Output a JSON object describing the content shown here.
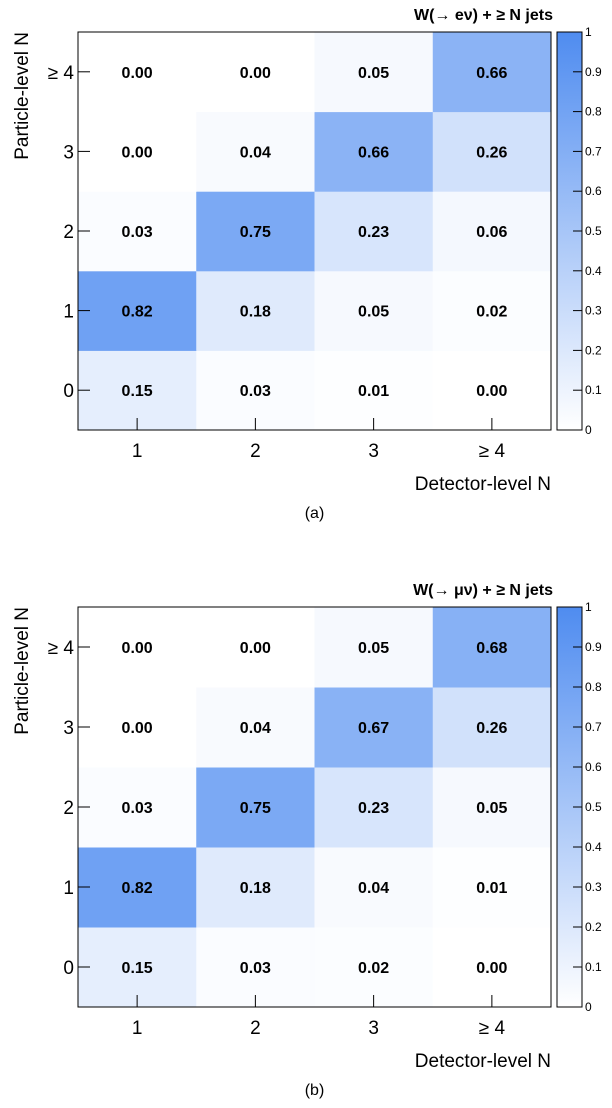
{
  "chart_data": [
    {
      "type": "heatmap",
      "title": "W(→ eν) + ≥ N jets",
      "xlabel": "Detector-level N",
      "ylabel": "Particle-level N",
      "caption": "(a)",
      "x_categories": [
        "1",
        "2",
        "3",
        "≥ 4"
      ],
      "y_categories": [
        "0",
        "1",
        "2",
        "3",
        "≥ 4"
      ],
      "values": [
        [
          0.15,
          0.03,
          0.01,
          0.0
        ],
        [
          0.82,
          0.18,
          0.05,
          0.02
        ],
        [
          0.03,
          0.75,
          0.23,
          0.06
        ],
        [
          0.0,
          0.04,
          0.66,
          0.26
        ],
        [
          0.0,
          0.0,
          0.05,
          0.66
        ]
      ],
      "zlim": [
        0,
        1
      ],
      "colorbar_ticks": [
        "0",
        "0.1",
        "0.2",
        "0.3",
        "0.4",
        "0.5",
        "0.6",
        "0.7",
        "0.8",
        "0.9",
        "1"
      ],
      "colormap": {
        "low": "#ffffff",
        "high": "#4f8cf0"
      }
    },
    {
      "type": "heatmap",
      "title": "W(→ μν) + ≥ N jets",
      "xlabel": "Detector-level N",
      "ylabel": "Particle-level N",
      "caption": "(b)",
      "x_categories": [
        "1",
        "2",
        "3",
        "≥ 4"
      ],
      "y_categories": [
        "0",
        "1",
        "2",
        "3",
        "≥ 4"
      ],
      "values": [
        [
          0.15,
          0.03,
          0.02,
          0.0
        ],
        [
          0.82,
          0.18,
          0.04,
          0.01
        ],
        [
          0.03,
          0.75,
          0.23,
          0.05
        ],
        [
          0.0,
          0.04,
          0.67,
          0.26
        ],
        [
          0.0,
          0.0,
          0.05,
          0.68
        ]
      ],
      "zlim": [
        0,
        1
      ],
      "colorbar_ticks": [
        "0",
        "0.1",
        "0.2",
        "0.3",
        "0.4",
        "0.5",
        "0.6",
        "0.7",
        "0.8",
        "0.9",
        "1"
      ],
      "colormap": {
        "low": "#ffffff",
        "high": "#4f8cf0"
      }
    }
  ]
}
